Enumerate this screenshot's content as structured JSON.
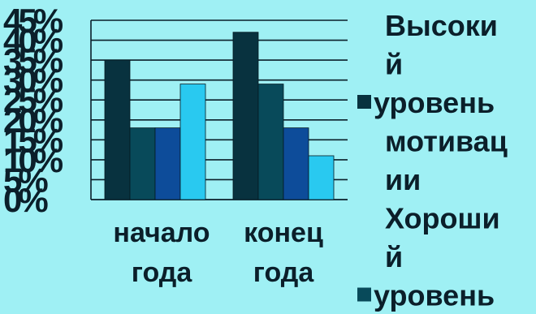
{
  "chart_data": {
    "type": "bar",
    "categories": [
      "начало года",
      "конец года"
    ],
    "category_lines": [
      [
        "начало",
        "года"
      ],
      [
        "конец",
        "года"
      ]
    ],
    "series": [
      {
        "name": "Высокий уровень мотивации",
        "values": [
          35,
          42
        ],
        "color": "#08323f"
      },
      {
        "name": "Хороший уровень",
        "values": [
          18,
          29
        ],
        "color": "#084a5a"
      },
      {
        "name": "",
        "values": [
          18,
          18
        ],
        "color": "#0d4c9a"
      },
      {
        "name": "",
        "values": [
          29,
          11
        ],
        "color": "#29c9f0"
      }
    ],
    "legend_lines": [
      {
        "text": "Высоки",
        "series": 0
      },
      {
        "text": "й",
        "series": 0
      },
      {
        "text": "уровень",
        "series": 0,
        "swatch": true
      },
      {
        "text": "мотивац",
        "series": 0
      },
      {
        "text": "ии",
        "series": 0
      },
      {
        "text": "Хороши",
        "series": 1
      },
      {
        "text": "й",
        "series": 1
      },
      {
        "text": "уровень",
        "series": 1,
        "swatch": true
      }
    ],
    "yticks": [
      "0%",
      "5%",
      "10%",
      "15%",
      "20%",
      "25%",
      "30%",
      "35%",
      "40%",
      "45%"
    ],
    "ylim": [
      0,
      45
    ],
    "grid": true,
    "legend": "right",
    "title": "",
    "xlabel": "",
    "ylabel": ""
  }
}
